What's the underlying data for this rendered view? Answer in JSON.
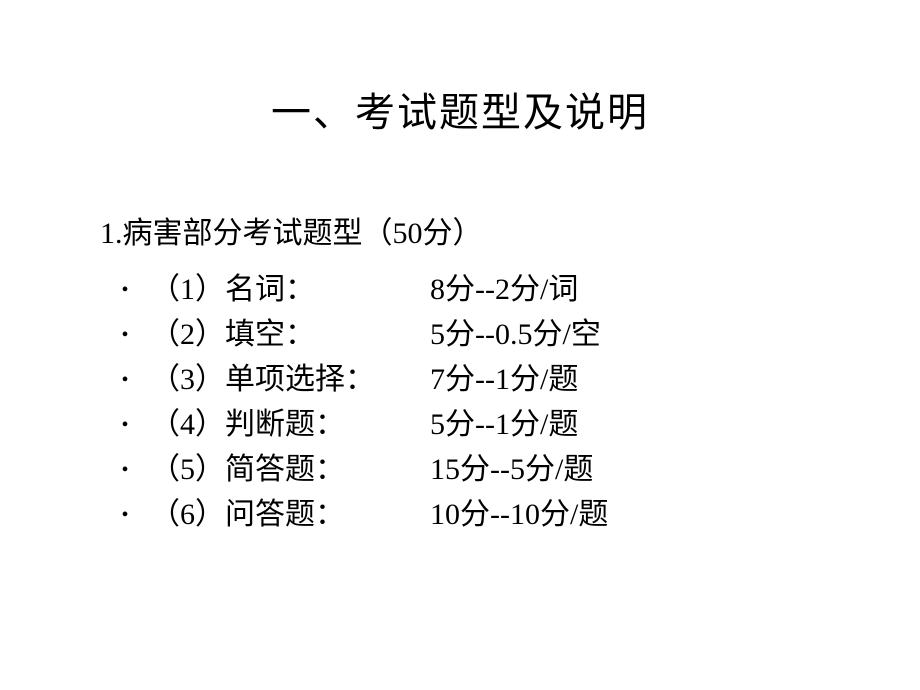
{
  "title": "一、考试题型及说明",
  "section": {
    "header": "1.病害部分考试题型（50分）",
    "items": [
      {
        "label": "（1）名词：",
        "value": "8分--2分/词"
      },
      {
        "label": "（2）填空：",
        "value": "5分--0.5分/空"
      },
      {
        "label": "（3）单项选择：",
        "value": "7分--1分/题"
      },
      {
        "label": "（4）判断题：",
        "value": "5分--1分/题"
      },
      {
        "label": "（5）简答题：",
        "value": "15分--5分/题"
      },
      {
        "label": "（6）问答题：",
        "value": "10分--10分/题"
      }
    ]
  },
  "styling": {
    "background_color": "#ffffff",
    "text_color": "#000000",
    "title_fontsize": 40,
    "body_fontsize": 30,
    "font_family": "SimSun",
    "bullet_char": "•"
  }
}
